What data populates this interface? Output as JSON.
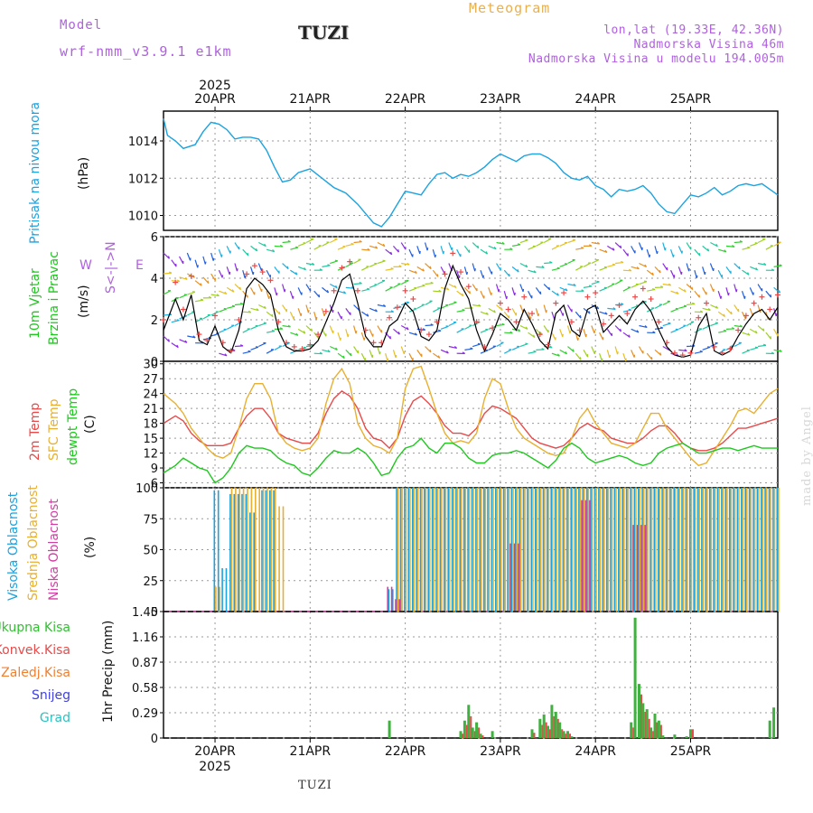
{
  "header": {
    "model_label": "Model",
    "model_name": "wrf-nmm_v3.9.1 e1km",
    "station": "TUZI",
    "product": "Meteogram",
    "coords": "lon,lat (19.33E, 42.36N)",
    "elevation": "Nadmorska Visina 46m",
    "model_elevation": "Nadmorska Visina u modelu 194.005m"
  },
  "footer": {
    "station": "TUZI",
    "credit": "made by Angel"
  },
  "colors": {
    "pressure": "#1aa3e0",
    "temp2m": "#e84a4a",
    "sfc_temp": "#e8b030",
    "dewpt": "#1ec81e",
    "wind_speed": "#000000",
    "gust_marker": "#e84a4a",
    "cloud_high": "#1aa3e0",
    "cloud_mid": "#e8b030",
    "cloud_low": "#d040a0",
    "precip_total": "#40b040",
    "precip_conv": "#e84a4a",
    "grid": "#999999"
  },
  "time_axis": {
    "year": "2025",
    "days": [
      "20APR",
      "21APR",
      "22APR",
      "23APR",
      "24APR",
      "25APR"
    ],
    "start_hour": -13,
    "end_hour": 142
  },
  "chart_data": [
    {
      "type": "line",
      "panel": "pressure",
      "title": "Pritisak na nivou mora",
      "unit": "(hPa)",
      "ylim": [
        1009.2,
        1015.6
      ],
      "yticks": [
        1010,
        1012,
        1014
      ],
      "grid": true,
      "x_hours": [
        -13,
        -12,
        -10,
        -8,
        -5,
        -3,
        -1,
        1,
        3,
        5,
        7,
        9,
        11,
        13,
        15,
        17,
        19,
        21,
        24,
        27,
        30,
        33,
        36,
        38,
        40,
        42,
        44,
        46,
        48,
        50,
        52,
        54,
        56,
        58,
        60,
        62,
        64,
        66,
        68,
        70,
        72,
        74,
        76,
        78,
        80,
        82,
        84,
        86,
        88,
        90,
        92,
        94,
        96,
        98,
        100,
        102,
        104,
        106,
        108,
        110,
        112,
        114,
        116,
        118,
        120,
        122,
        124,
        126,
        128,
        130,
        132,
        134,
        136,
        138,
        140,
        142
      ],
      "series": [
        {
          "values": [
            1015.2,
            1014.3,
            1014.0,
            1013.6,
            1013.8,
            1014.5,
            1015.0,
            1014.9,
            1014.6,
            1014.1,
            1014.2,
            1014.2,
            1014.1,
            1013.5,
            1012.6,
            1011.8,
            1011.9,
            1012.3,
            1012.5,
            1012.0,
            1011.5,
            1011.2,
            1010.6,
            1010.1,
            1009.6,
            1009.4,
            1009.9,
            1010.6,
            1011.3,
            1011.2,
            1011.1,
            1011.7,
            1012.2,
            1012.3,
            1012.0,
            1012.2,
            1012.1,
            1012.3,
            1012.6,
            1013.0,
            1013.3,
            1013.1,
            1012.9,
            1013.2,
            1013.3,
            1013.3,
            1013.1,
            1012.8,
            1012.3,
            1012.0,
            1011.9,
            1012.1,
            1011.6,
            1011.4,
            1011.0,
            1011.4,
            1011.3,
            1011.4,
            1011.6,
            1011.2,
            1010.6,
            1010.2,
            1010.1,
            1010.6,
            1011.1,
            1011.0,
            1011.2,
            1011.5,
            1011.1,
            1011.3,
            1011.6,
            1011.7,
            1011.6,
            1011.7,
            1011.4,
            1011.1
          ]
        }
      ]
    },
    {
      "type": "line",
      "panel": "wind",
      "title": "10m Vjetar",
      "subtitle": "Brzina i Pravac",
      "unit": "(m/s)",
      "ylim": [
        0,
        6
      ],
      "yticks": [
        0,
        2,
        4,
        6
      ],
      "grid": true,
      "x_hours": [
        -13,
        -10,
        -8,
        -6,
        -4,
        -2,
        0,
        2,
        4,
        6,
        8,
        10,
        12,
        14,
        16,
        18,
        20,
        22,
        24,
        26,
        28,
        30,
        32,
        34,
        36,
        38,
        40,
        42,
        44,
        46,
        48,
        50,
        52,
        54,
        56,
        58,
        60,
        62,
        64,
        66,
        68,
        70,
        72,
        74,
        76,
        78,
        80,
        82,
        84,
        86,
        88,
        90,
        92,
        94,
        96,
        98,
        100,
        102,
        104,
        106,
        108,
        110,
        112,
        114,
        116,
        118,
        120,
        122,
        124,
        126,
        128,
        130,
        132,
        134,
        136,
        138,
        140,
        142
      ],
      "series": [
        {
          "name": "speed",
          "values": [
            1.5,
            3.0,
            2.0,
            3.2,
            1.0,
            0.8,
            1.7,
            0.7,
            0.4,
            1.5,
            3.5,
            4.0,
            3.7,
            3.2,
            1.5,
            0.7,
            0.5,
            0.5,
            0.6,
            1.0,
            1.9,
            2.8,
            3.9,
            4.2,
            2.8,
            1.2,
            0.7,
            0.7,
            1.7,
            2.0,
            2.8,
            2.4,
            1.2,
            1.0,
            1.5,
            3.5,
            4.6,
            3.7,
            3.0,
            1.5,
            0.5,
            1.3,
            2.3,
            2.0,
            1.5,
            2.5,
            1.8,
            1.0,
            0.6,
            2.3,
            2.7,
            1.5,
            1.2,
            2.5,
            2.7,
            1.4,
            1.8,
            2.2,
            1.8,
            2.5,
            2.9,
            2.4,
            1.5,
            0.7,
            0.3,
            0.2,
            0.3,
            1.7,
            2.3,
            0.5,
            0.3,
            0.5,
            1.2,
            1.8,
            2.3,
            2.5,
            2.0,
            2.6
          ]
        },
        {
          "name": "gust",
          "values": [
            2.0,
            3.8,
            2.5,
            4.1,
            1.3,
            1.0,
            2.2,
            0.9,
            0.5,
            2.0,
            4.2,
            4.6,
            4.3,
            3.9,
            1.9,
            0.9,
            0.7,
            0.6,
            0.8,
            1.3,
            2.4,
            3.4,
            4.5,
            4.8,
            3.4,
            1.5,
            0.9,
            0.9,
            2.1,
            2.6,
            3.4,
            3.0,
            1.5,
            1.3,
            1.9,
            4.2,
            5.2,
            4.3,
            3.6,
            1.9,
            0.7,
            1.6,
            2.8,
            2.5,
            1.9,
            3.1,
            2.3,
            1.3,
            0.8,
            2.8,
            3.3,
            1.9,
            1.5,
            3.1,
            3.3,
            1.8,
            2.2,
            2.7,
            2.3,
            3.1,
            3.5,
            3.0,
            1.9,
            0.9,
            0.4,
            0.3,
            0.4,
            2.1,
            2.8,
            0.7,
            0.4,
            0.6,
            1.5,
            2.2,
            2.8,
            3.1,
            2.5,
            3.2
          ]
        }
      ],
      "direction_legend": {
        "north": "N",
        "south": "S",
        "west": "W",
        "east": "E"
      }
    },
    {
      "type": "line",
      "panel": "temperature",
      "titles": [
        "2m Temp",
        "SFC Temp",
        "dewpt Temp"
      ],
      "unit": "(C)",
      "ylim": [
        5,
        30.5
      ],
      "yticks": [
        6,
        9,
        12,
        15,
        18,
        21,
        24,
        27,
        30
      ],
      "grid": true,
      "x_hours": [
        -13,
        -10,
        -8,
        -6,
        -4,
        -2,
        0,
        2,
        4,
        6,
        8,
        10,
        12,
        14,
        16,
        18,
        20,
        22,
        24,
        26,
        28,
        30,
        32,
        34,
        36,
        38,
        40,
        42,
        44,
        46,
        48,
        50,
        52,
        54,
        56,
        58,
        60,
        62,
        64,
        66,
        68,
        70,
        72,
        74,
        76,
        78,
        80,
        82,
        84,
        86,
        88,
        90,
        92,
        94,
        96,
        98,
        100,
        102,
        104,
        106,
        108,
        110,
        112,
        114,
        116,
        118,
        120,
        122,
        124,
        126,
        128,
        130,
        132,
        134,
        136,
        138,
        140,
        142
      ],
      "series": [
        {
          "name": "2m Temp",
          "values": [
            18.0,
            19.5,
            18.5,
            16.0,
            14.5,
            13.5,
            13.5,
            13.5,
            14.0,
            17.0,
            19.5,
            21.0,
            21.0,
            19.0,
            16.0,
            15.0,
            14.5,
            14.0,
            14.0,
            16.0,
            20.0,
            23.0,
            24.5,
            23.5,
            21.0,
            17.0,
            15.0,
            14.5,
            13.0,
            15.0,
            19.5,
            22.5,
            23.5,
            22.0,
            20.0,
            17.5,
            16.0,
            16.0,
            15.5,
            17.0,
            20.0,
            21.5,
            21.0,
            20.0,
            19.0,
            17.0,
            15.0,
            14.0,
            13.5,
            13.0,
            13.5,
            15.0,
            17.0,
            18.0,
            17.0,
            16.5,
            15.0,
            14.5,
            14.0,
            14.0,
            15.0,
            16.5,
            17.5,
            17.5,
            16.0,
            14.0,
            13.0,
            12.5,
            12.5,
            13.0,
            14.0,
            15.5,
            17.0,
            17.0,
            17.5,
            18.0,
            18.5,
            19.0
          ]
        },
        {
          "name": "SFC Temp",
          "values": [
            24.0,
            22.0,
            20.0,
            17.0,
            15.0,
            13.0,
            11.5,
            11.0,
            12.0,
            17.0,
            23.0,
            26.0,
            26.0,
            23.0,
            16.0,
            14.0,
            13.0,
            12.5,
            13.0,
            15.0,
            22.0,
            27.0,
            29.0,
            26.0,
            18.0,
            15.0,
            13.5,
            13.0,
            12.0,
            15.0,
            25.0,
            29.0,
            29.5,
            25.0,
            20.0,
            16.0,
            14.0,
            14.5,
            14.0,
            16.0,
            23.0,
            27.0,
            26.0,
            21.0,
            17.0,
            15.0,
            14.0,
            13.0,
            12.0,
            11.5,
            12.0,
            15.0,
            19.0,
            21.0,
            18.0,
            16.0,
            14.0,
            13.5,
            13.0,
            14.0,
            17.0,
            20.0,
            20.0,
            17.0,
            15.0,
            13.0,
            11.0,
            9.5,
            10.0,
            12.5,
            15.0,
            17.5,
            20.5,
            21.0,
            20.0,
            22.0,
            24.0,
            25.0
          ]
        },
        {
          "name": "dewpt Temp",
          "values": [
            8.0,
            9.5,
            11.0,
            10.0,
            9.0,
            8.5,
            6.0,
            7.0,
            9.0,
            12.0,
            13.5,
            13.0,
            13.0,
            12.5,
            11.0,
            10.0,
            9.5,
            8.0,
            7.5,
            9.0,
            11.0,
            12.5,
            12.0,
            12.0,
            13.0,
            12.0,
            10.0,
            7.5,
            8.0,
            11.0,
            13.0,
            13.5,
            15.0,
            13.0,
            12.0,
            14.0,
            14.0,
            13.0,
            11.0,
            10.0,
            10.0,
            11.5,
            12.0,
            12.0,
            12.5,
            12.0,
            11.0,
            10.0,
            9.0,
            10.5,
            13.0,
            14.0,
            13.0,
            11.0,
            10.0,
            10.5,
            11.0,
            11.5,
            11.0,
            10.0,
            9.5,
            10.0,
            12.0,
            13.0,
            13.5,
            14.0,
            13.0,
            12.0,
            12.0,
            12.5,
            13.0,
            13.0,
            12.5,
            13.0,
            13.5,
            13.0,
            13.0,
            13.0
          ]
        }
      ]
    },
    {
      "type": "bar",
      "panel": "clouds",
      "titles": [
        "Visoka Oblacnost",
        "Srednja Oblacnost",
        "Niska Oblacnost"
      ],
      "unit": "(%)",
      "ylim": [
        0,
        100
      ],
      "yticks": [
        0,
        25,
        50,
        75,
        100
      ],
      "grid": true,
      "note": "cloud fraction per hour; high/mid/low",
      "series": [
        {
          "name": "Visoka Oblacnost",
          "segments": [
            {
              "from": 0,
              "to": 1,
              "value": 98
            },
            {
              "from": 2,
              "to": 3,
              "value": 35
            },
            {
              "from": 4,
              "to": 8,
              "value": 95
            },
            {
              "from": 9,
              "to": 10,
              "value": 80
            },
            {
              "from": 12,
              "to": 15,
              "value": 98
            },
            {
              "from": 44,
              "to": 45,
              "value": 18
            },
            {
              "from": 46,
              "to": 142,
              "value": 100
            }
          ]
        },
        {
          "name": "Srednja Oblacnost",
          "segments": [
            {
              "from": 0,
              "to": 1,
              "value": 20
            },
            {
              "from": 4,
              "to": 15,
              "value": 100
            },
            {
              "from": 16,
              "to": 17,
              "value": 85
            },
            {
              "from": 46,
              "to": 142,
              "value": 100
            }
          ]
        },
        {
          "name": "Niska Oblacnost",
          "segments": [
            {
              "from": 43,
              "to": 44,
              "value": 20
            },
            {
              "from": 45,
              "to": 46,
              "value": 10
            },
            {
              "from": 74,
              "to": 76,
              "value": 55
            },
            {
              "from": 92,
              "to": 94,
              "value": 90
            },
            {
              "from": 105,
              "to": 108,
              "value": 70
            }
          ]
        }
      ]
    },
    {
      "type": "bar",
      "panel": "precipitation",
      "titles": [
        "Ukupna Kisa",
        "Konvek.Kisa",
        "Zaledj.Kisa",
        "Snijeg",
        "Grad"
      ],
      "unit": "1hr Precip (mm)",
      "ylim": [
        0,
        1.45
      ],
      "yticks": [
        0,
        0.29,
        0.58,
        0.87,
        1.16,
        1.45
      ],
      "grid": true,
      "x_hours": [
        44,
        62,
        63,
        64,
        65,
        66,
        67,
        70,
        80,
        82,
        83,
        84,
        85,
        86,
        87,
        88,
        89,
        90,
        105,
        106,
        107,
        108,
        109,
        110,
        111,
        112,
        113,
        116,
        119,
        120,
        140,
        141
      ],
      "series": [
        {
          "name": "Ukupna Kisa",
          "values": [
            0.2,
            0.08,
            0.2,
            0.38,
            0.12,
            0.18,
            0.05,
            0.08,
            0.1,
            0.22,
            0.27,
            0.14,
            0.38,
            0.3,
            0.18,
            0.08,
            0.08,
            0.02,
            0.18,
            1.38,
            0.62,
            0.4,
            0.33,
            0.12,
            0.28,
            0.2,
            0.03,
            0.04,
            0.02,
            0.1,
            0.2,
            0.35
          ]
        },
        {
          "name": "Konvek.Kisa",
          "values": [
            0,
            0.05,
            0.15,
            0.25,
            0.08,
            0.12,
            0.03,
            0,
            0.06,
            0.15,
            0.18,
            0.1,
            0.25,
            0.22,
            0.1,
            0.05,
            0.05,
            0,
            0.12,
            0,
            0.5,
            0.3,
            0.22,
            0.08,
            0.18,
            0.15,
            0,
            0,
            0,
            0.1,
            0,
            0
          ]
        }
      ]
    }
  ]
}
